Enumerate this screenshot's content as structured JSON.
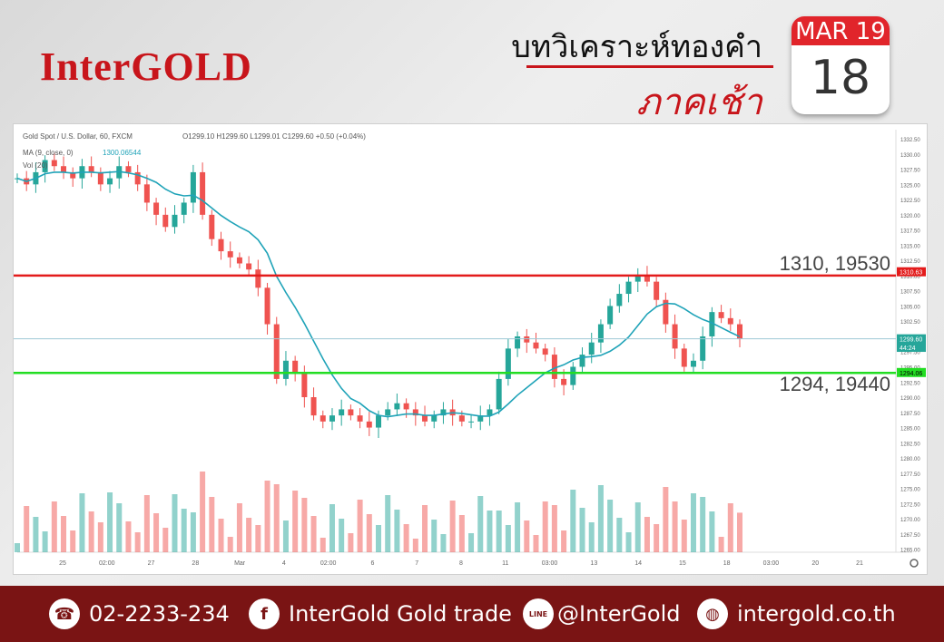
{
  "header": {
    "logo": "InterGOLD",
    "title": "บทวิเคราะห์ทองคำ",
    "subtitle": "ภาคเช้า",
    "calendar_month": "MAR 19",
    "calendar_day": "18"
  },
  "colors": {
    "brand_red": "#c8151b",
    "footer_bg": "#7a1414",
    "up_candle": "#26a69a",
    "down_candle": "#ef5350",
    "ma_line": "#1fa3b8",
    "resistance": "#e31b1b",
    "support": "#22dd22"
  },
  "chart_data": {
    "type": "candlestick",
    "title": "Gold Spot / U.S. Dollar, 60, FXCM",
    "ohlc_header": "O1299.10 H1299.60 L1299.01 C1299.60 +0.50 (+0.04%)",
    "ma_label": "MA (9, close, 0)",
    "ma_value": "1300.06544",
    "vol_label": "Vol (20)",
    "ylim": [
      1264.5,
      1334
    ],
    "y_ticks": [
      "1332.50",
      "1330.00",
      "1327.50",
      "1325.00",
      "1322.50",
      "1320.00",
      "1317.50",
      "1315.00",
      "1312.50",
      "1310.00",
      "1307.50",
      "1305.00",
      "1302.50",
      "1300.00",
      "1297.50",
      "1295.00",
      "1292.50",
      "1290.00",
      "1287.50",
      "1285.00",
      "1282.50",
      "1280.00",
      "1277.50",
      "1275.00",
      "1272.50",
      "1270.00",
      "1267.50",
      "1265.00"
    ],
    "x_ticks": [
      "25",
      "02:00",
      "27",
      "28",
      "Mar",
      "4",
      "02:00",
      "6",
      "7",
      "8",
      "11",
      "03:00",
      "13",
      "14",
      "15",
      "18",
      "03:00",
      "20",
      "21"
    ],
    "price_path": [
      1326,
      1325,
      1327,
      1329,
      1328,
      1327,
      1326,
      1328,
      1327,
      1325,
      1326,
      1328,
      1327,
      1325,
      1322,
      1320,
      1318,
      1320,
      1322,
      1327,
      1320,
      1316,
      1314,
      1313,
      1312,
      1311,
      1308,
      1302,
      1293,
      1296,
      1294,
      1290,
      1287,
      1286,
      1287,
      1288,
      1287,
      1286,
      1285,
      1287,
      1288,
      1289,
      1288,
      1287,
      1286,
      1287,
      1288,
      1287,
      1286,
      1286,
      1287,
      1288,
      1293,
      1298,
      1300,
      1299,
      1298,
      1297,
      1293,
      1292,
      1295,
      1297,
      1299,
      1302,
      1305,
      1307,
      1309,
      1310,
      1309,
      1306,
      1302,
      1298,
      1295,
      1296,
      1300,
      1304,
      1303,
      1302,
      1299.6
    ],
    "lines": [
      {
        "label": "1310, 19530",
        "value": 1310
      },
      {
        "label": "1294, 19440",
        "value": 1294
      }
    ],
    "price_tags": [
      {
        "text": "1310.63",
        "value": 1310.63
      },
      {
        "text": "1299.60",
        "value": 1299.6
      },
      {
        "text": "44:24",
        "value": 1298.2
      },
      {
        "text": "1294.06",
        "value": 1294.06
      }
    ],
    "current_price": 1299.6
  },
  "footer": {
    "phone": "02-2233-234",
    "facebook": "InterGold Gold trade",
    "line": "@InterGold",
    "web": "intergold.co.th",
    "line_icon_text": "LINE"
  }
}
